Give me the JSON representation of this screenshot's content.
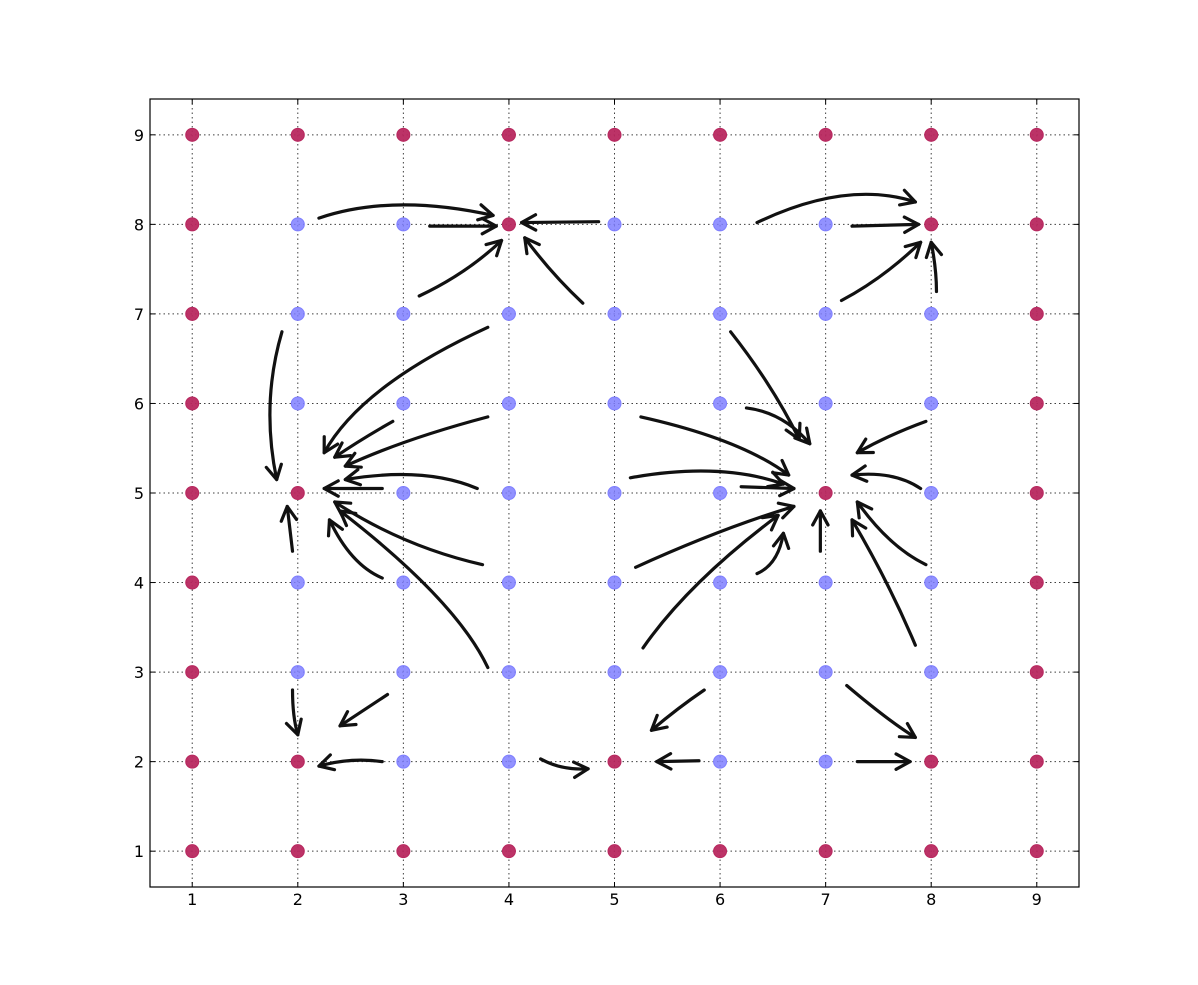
{
  "chart_data": {
    "type": "scatter",
    "title": "",
    "xlabel": "",
    "ylabel": "",
    "xlim": [
      0.6,
      9.4
    ],
    "ylim": [
      0.6,
      9.4
    ],
    "xticks": [
      "1",
      "2",
      "3",
      "4",
      "5",
      "6",
      "7",
      "8",
      "9"
    ],
    "yticks": [
      "1",
      "2",
      "3",
      "4",
      "5",
      "6",
      "7",
      "8",
      "9"
    ],
    "grid": true,
    "legend": "none",
    "colors": {
      "red": "#b8285f",
      "blue": "#7f7fff",
      "arrow": "#111111"
    },
    "series": [
      {
        "color": "red",
        "points": [
          [
            1,
            9
          ],
          [
            2,
            9
          ],
          [
            3,
            9
          ],
          [
            4,
            9
          ],
          [
            5,
            9
          ],
          [
            6,
            9
          ],
          [
            7,
            9
          ],
          [
            8,
            9
          ],
          [
            9,
            9
          ],
          [
            1,
            8
          ],
          [
            4,
            8
          ],
          [
            8,
            8
          ],
          [
            9,
            8
          ],
          [
            1,
            7
          ],
          [
            9,
            7
          ],
          [
            1,
            6
          ],
          [
            9,
            6
          ],
          [
            1,
            5
          ],
          [
            2,
            5
          ],
          [
            7,
            5
          ],
          [
            9,
            5
          ],
          [
            1,
            4
          ],
          [
            9,
            4
          ],
          [
            1,
            3
          ],
          [
            9,
            3
          ],
          [
            1,
            2
          ],
          [
            2,
            2
          ],
          [
            5,
            2
          ],
          [
            8,
            2
          ],
          [
            9,
            2
          ],
          [
            1,
            1
          ],
          [
            2,
            1
          ],
          [
            3,
            1
          ],
          [
            4,
            1
          ],
          [
            5,
            1
          ],
          [
            6,
            1
          ],
          [
            7,
            1
          ],
          [
            8,
            1
          ],
          [
            9,
            1
          ]
        ]
      },
      {
        "color": "blue",
        "points": [
          [
            2,
            8
          ],
          [
            3,
            8
          ],
          [
            5,
            8
          ],
          [
            6,
            8
          ],
          [
            7,
            8
          ],
          [
            2,
            7
          ],
          [
            3,
            7
          ],
          [
            4,
            7
          ],
          [
            5,
            7
          ],
          [
            6,
            7
          ],
          [
            7,
            7
          ],
          [
            8,
            7
          ],
          [
            2,
            6
          ],
          [
            3,
            6
          ],
          [
            4,
            6
          ],
          [
            5,
            6
          ],
          [
            6,
            6
          ],
          [
            7,
            6
          ],
          [
            8,
            6
          ],
          [
            3,
            5
          ],
          [
            4,
            5
          ],
          [
            5,
            5
          ],
          [
            6,
            5
          ],
          [
            8,
            5
          ],
          [
            2,
            4
          ],
          [
            3,
            4
          ],
          [
            4,
            4
          ],
          [
            5,
            4
          ],
          [
            6,
            4
          ],
          [
            7,
            4
          ],
          [
            8,
            4
          ],
          [
            2,
            3
          ],
          [
            3,
            3
          ],
          [
            4,
            3
          ],
          [
            5,
            3
          ],
          [
            6,
            3
          ],
          [
            7,
            3
          ],
          [
            8,
            3
          ],
          [
            3,
            2
          ],
          [
            4,
            2
          ],
          [
            6,
            2
          ],
          [
            7,
            2
          ]
        ]
      }
    ],
    "annotations": {
      "type": "hand-drawn arrows",
      "arrows": [
        {
          "from": [
            2.2,
            8.07
          ],
          "to": [
            3.85,
            8.1
          ],
          "ctrl": [
            2.9,
            8.35
          ]
        },
        {
          "from": [
            3.25,
            7.98
          ],
          "to": [
            3.88,
            7.98
          ]
        },
        {
          "from": [
            3.15,
            7.2
          ],
          "to": [
            3.93,
            7.82
          ],
          "ctrl": [
            3.6,
            7.45
          ]
        },
        {
          "from": [
            4.85,
            8.03
          ],
          "to": [
            4.12,
            8.02
          ]
        },
        {
          "from": [
            4.7,
            7.12
          ],
          "to": [
            4.15,
            7.85
          ],
          "ctrl": [
            4.4,
            7.45
          ]
        },
        {
          "from": [
            6.35,
            8.02
          ],
          "to": [
            7.85,
            8.25
          ],
          "ctrl": [
            7.2,
            8.5
          ]
        },
        {
          "from": [
            7.25,
            7.98
          ],
          "to": [
            7.88,
            8.0
          ]
        },
        {
          "from": [
            7.15,
            7.15
          ],
          "to": [
            7.9,
            7.8
          ],
          "ctrl": [
            7.55,
            7.4
          ]
        },
        {
          "from": [
            8.05,
            7.25
          ],
          "to": [
            8.0,
            7.8
          ],
          "ctrl": [
            8.05,
            7.5
          ]
        },
        {
          "from": [
            1.85,
            6.8
          ],
          "to": [
            1.8,
            5.15
          ],
          "ctrl": [
            1.65,
            6.0
          ]
        },
        {
          "from": [
            3.8,
            6.85
          ],
          "to": [
            2.25,
            5.45
          ],
          "ctrl": [
            2.6,
            6.2
          ]
        },
        {
          "from": [
            2.9,
            5.8
          ],
          "to": [
            2.35,
            5.4
          ],
          "ctrl": [
            2.6,
            5.6
          ]
        },
        {
          "from": [
            3.8,
            5.85
          ],
          "to": [
            2.45,
            5.3
          ],
          "ctrl": [
            3.0,
            5.6
          ]
        },
        {
          "from": [
            3.7,
            5.05
          ],
          "to": [
            2.45,
            5.15
          ],
          "ctrl": [
            3.2,
            5.3
          ]
        },
        {
          "from": [
            2.8,
            5.05
          ],
          "to": [
            2.25,
            5.05
          ]
        },
        {
          "from": [
            3.75,
            4.2
          ],
          "to": [
            2.35,
            4.9
          ],
          "ctrl": [
            3.0,
            4.4
          ]
        },
        {
          "from": [
            2.8,
            4.05
          ],
          "to": [
            2.3,
            4.7
          ],
          "ctrl": [
            2.5,
            4.2
          ]
        },
        {
          "from": [
            3.8,
            3.05
          ],
          "to": [
            2.4,
            4.8
          ],
          "ctrl": [
            3.5,
            3.8
          ]
        },
        {
          "from": [
            1.95,
            4.35
          ],
          "to": [
            1.9,
            4.85
          ]
        },
        {
          "from": [
            1.95,
            2.8
          ],
          "to": [
            2.0,
            2.3
          ],
          "ctrl": [
            1.95,
            2.5
          ]
        },
        {
          "from": [
            2.85,
            2.75
          ],
          "to": [
            2.4,
            2.4
          ]
        },
        {
          "from": [
            2.8,
            2.0
          ],
          "to": [
            2.2,
            1.95
          ],
          "ctrl": [
            2.5,
            2.05
          ]
        },
        {
          "from": [
            4.3,
            2.03
          ],
          "to": [
            4.75,
            1.92
          ],
          "ctrl": [
            4.5,
            1.9
          ]
        },
        {
          "from": [
            5.85,
            2.8
          ],
          "to": [
            5.35,
            2.35
          ],
          "ctrl": [
            5.6,
            2.6
          ]
        },
        {
          "from": [
            5.8,
            2.01
          ],
          "to": [
            5.4,
            2.0
          ]
        },
        {
          "from": [
            7.2,
            2.85
          ],
          "to": [
            7.85,
            2.27
          ],
          "ctrl": [
            7.6,
            2.45
          ]
        },
        {
          "from": [
            7.3,
            2.0
          ],
          "to": [
            7.8,
            2.0
          ]
        },
        {
          "from": [
            6.1,
            6.8
          ],
          "to": [
            6.75,
            5.6
          ],
          "ctrl": [
            6.5,
            6.2
          ]
        },
        {
          "from": [
            6.25,
            5.95
          ],
          "to": [
            6.85,
            5.55
          ],
          "ctrl": [
            6.6,
            5.9
          ]
        },
        {
          "from": [
            5.25,
            5.85
          ],
          "to": [
            6.65,
            5.2
          ],
          "ctrl": [
            6.2,
            5.6
          ]
        },
        {
          "from": [
            5.15,
            5.17
          ],
          "to": [
            6.6,
            5.1
          ],
          "ctrl": [
            6.0,
            5.35
          ]
        },
        {
          "from": [
            6.2,
            5.07
          ],
          "to": [
            6.7,
            5.05
          ]
        },
        {
          "from": [
            5.2,
            4.17
          ],
          "to": [
            6.7,
            4.85
          ],
          "ctrl": [
            6.0,
            4.6
          ]
        },
        {
          "from": [
            5.27,
            3.27
          ],
          "to": [
            6.55,
            4.75
          ],
          "ctrl": [
            5.7,
            4.0
          ]
        },
        {
          "from": [
            6.35,
            4.1
          ],
          "to": [
            6.6,
            4.55
          ],
          "ctrl": [
            6.55,
            4.2
          ]
        },
        {
          "from": [
            7.95,
            5.8
          ],
          "to": [
            7.3,
            5.45
          ],
          "ctrl": [
            7.6,
            5.65
          ]
        },
        {
          "from": [
            7.9,
            5.05
          ],
          "to": [
            7.25,
            5.2
          ],
          "ctrl": [
            7.65,
            5.25
          ]
        },
        {
          "from": [
            7.95,
            4.2
          ],
          "to": [
            7.3,
            4.9
          ],
          "ctrl": [
            7.6,
            4.4
          ]
        },
        {
          "from": [
            7.85,
            3.3
          ],
          "to": [
            7.25,
            4.7
          ],
          "ctrl": [
            7.6,
            4.0
          ]
        },
        {
          "from": [
            6.95,
            4.35
          ],
          "to": [
            6.95,
            4.8
          ]
        }
      ]
    }
  }
}
